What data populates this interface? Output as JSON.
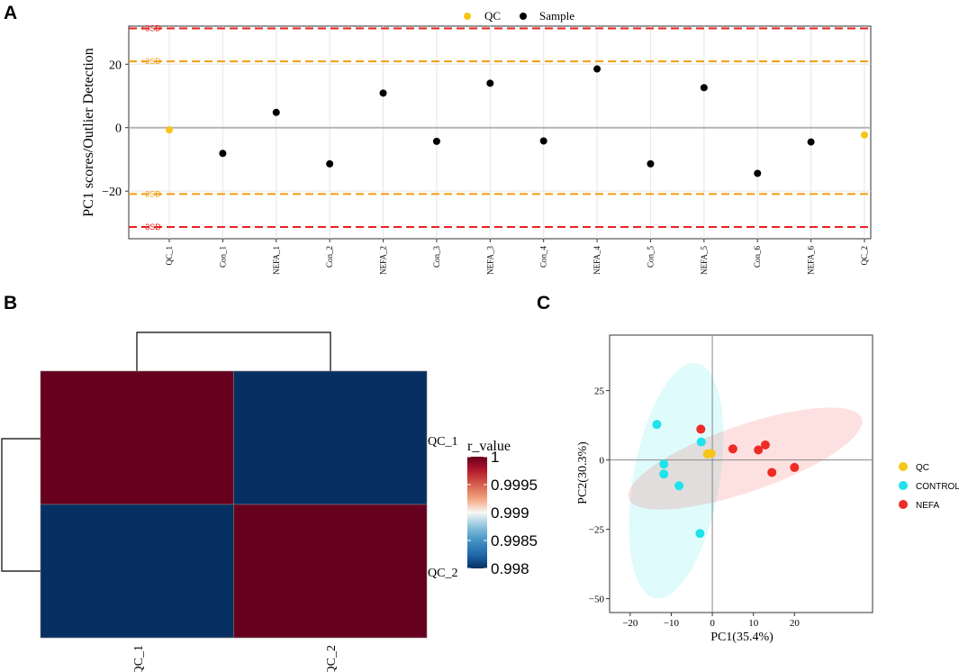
{
  "panels": {
    "a": {
      "letter": "A"
    },
    "b": {
      "letter": "B"
    },
    "c": {
      "letter": "C"
    }
  },
  "colors": {
    "qc": "#f5c518",
    "sample": "#000000",
    "sd3": "#e8231e",
    "sd2": "#f39c12",
    "control": "#1ee3ec",
    "nefa": "#ee2b25",
    "heat_high": "#67001f",
    "heat_low": "#053061"
  },
  "chart_data": [
    {
      "id": "A",
      "type": "scatter",
      "title": "",
      "ylabel": "PC1 scores/Outlier Detection",
      "xlabel": "",
      "ylim": [
        -35,
        32
      ],
      "yticks": [
        20,
        0,
        -20
      ],
      "ytick_labels": [
        "20",
        "0",
        "−20"
      ],
      "legend": [
        {
          "label": "QC",
          "color_key": "qc"
        },
        {
          "label": "Sample",
          "color_key": "sample"
        }
      ],
      "legend_position": "top",
      "reference_lines": [
        {
          "label": "+3SD",
          "value": 31.3,
          "color_key": "sd3"
        },
        {
          "label": "+2SD",
          "value": 20.9,
          "color_key": "sd2"
        },
        {
          "label": "−2SD",
          "value": -20.9,
          "color_key": "sd2"
        },
        {
          "label": "−3SD",
          "value": -31.3,
          "color_key": "sd3"
        }
      ],
      "categories": [
        "QC_1",
        "Con_1",
        "NEFA_1",
        "Con_2",
        "NEFA_2",
        "Con_3",
        "NEFA_3",
        "Con_4",
        "NEFA_4",
        "Con_5",
        "NEFA_5",
        "Con_6",
        "NEFA_6",
        "QC_2"
      ],
      "values": [
        -0.7,
        -8.1,
        4.8,
        -11.4,
        10.9,
        -4.3,
        14.0,
        -4.2,
        18.5,
        -11.4,
        12.6,
        -14.4,
        -4.5,
        -2.3
      ],
      "groups": [
        "QC",
        "Sample",
        "Sample",
        "Sample",
        "Sample",
        "Sample",
        "Sample",
        "Sample",
        "Sample",
        "Sample",
        "Sample",
        "Sample",
        "Sample",
        "QC"
      ]
    },
    {
      "id": "B",
      "type": "heatmap",
      "row_labels": [
        "QC_1",
        "QC_2"
      ],
      "col_labels": [
        "QC_1",
        "QC_2"
      ],
      "values": [
        [
          1,
          0.998
        ],
        [
          0.998,
          1
        ]
      ],
      "legend_title": "r_value",
      "legend_ticks": [
        "1",
        "0.9995",
        "0.999",
        "0.9985",
        "0.998"
      ],
      "legend_range": [
        0.998,
        1
      ]
    },
    {
      "id": "C",
      "type": "scatter",
      "xlabel": "PC1(35.4%)",
      "ylabel": "PC2(30.3%)",
      "xlim": [
        -25,
        39
      ],
      "ylim": [
        -55,
        45
      ],
      "xticks": [
        -20,
        -10,
        0,
        10,
        20
      ],
      "xtick_labels": [
        "−20",
        "−10",
        "0",
        "10",
        "20"
      ],
      "yticks": [
        25,
        0,
        -25,
        -50
      ],
      "ytick_labels": [
        "25",
        "0",
        "−25",
        "−50"
      ],
      "legend_position": "right",
      "series": [
        {
          "name": "QC",
          "color_key": "qc",
          "points": [
            [
              -1.2,
              2.2
            ],
            [
              -0.3,
              2.3
            ]
          ]
        },
        {
          "name": "CONTROL",
          "color_key": "control",
          "points": [
            [
              -13.5,
              12.8
            ],
            [
              -2.7,
              6.5
            ],
            [
              -8.1,
              -9.3
            ],
            [
              -11.8,
              -1.5
            ],
            [
              -11.8,
              -5.1
            ],
            [
              -3.0,
              -26.5
            ]
          ]
        },
        {
          "name": "NEFA",
          "color_key": "nefa",
          "points": [
            [
              -2.8,
              11.1
            ],
            [
              5.0,
              4.0
            ],
            [
              11.2,
              3.6
            ],
            [
              12.9,
              5.4
            ],
            [
              14.5,
              -4.5
            ],
            [
              20.0,
              -2.7
            ]
          ]
        }
      ],
      "ellipses": [
        {
          "group": "CONTROL",
          "center": [
            -8.8,
            -7.5
          ],
          "rx": 10.5,
          "ry": 43,
          "angle_deg": 10
        },
        {
          "group": "NEFA",
          "center": [
            8.0,
            0.5
          ],
          "rx": 30.0,
          "ry": 12.0,
          "angle_deg": -19
        }
      ]
    }
  ]
}
